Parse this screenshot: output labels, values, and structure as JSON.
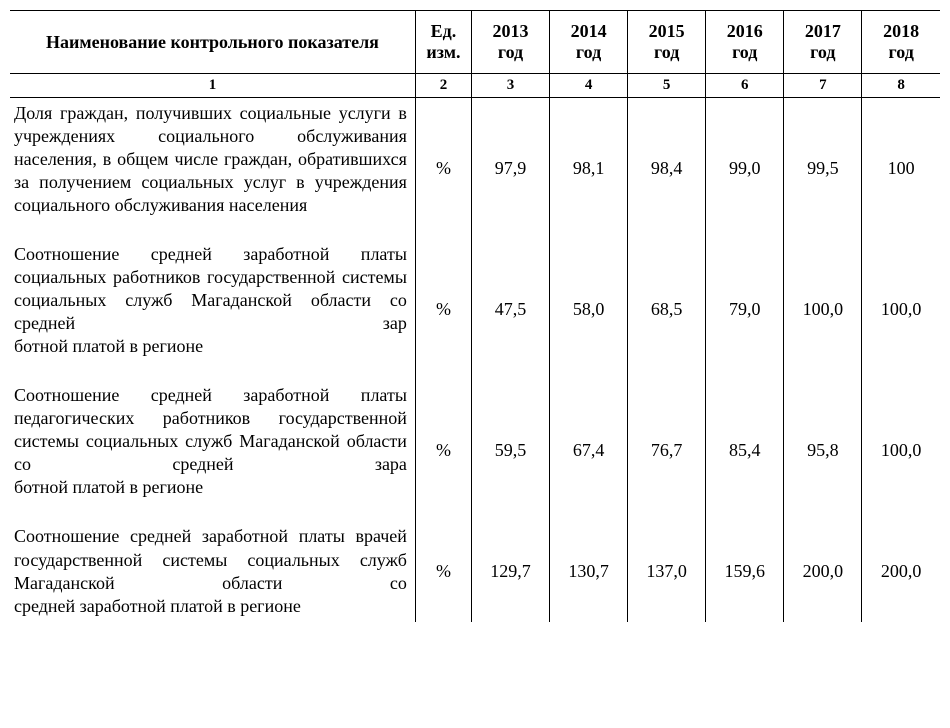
{
  "table": {
    "text_color": "#000000",
    "border_color": "#000000",
    "background_color": "#ffffff",
    "font_family": "Times New Roman",
    "header_fontsize": 18,
    "cell_fontsize": 18,
    "num_header_fontsize": 15,
    "header": {
      "name_col": "Наименование контрольного показателя",
      "unit_line1": "Ед.",
      "unit_line2": "изм.",
      "y2013_line1": "2013",
      "y2013_line2": "год",
      "y2014_line1": "2014",
      "y2014_line2": "год",
      "y2015_line1": "2015",
      "y2015_line2": "год",
      "y2016_line1": "2016",
      "y2016_line2": "год",
      "y2017_line1": "2017",
      "y2017_line2": "год",
      "y2018_line1": "2018",
      "y2018_line2": "год"
    },
    "numrow": {
      "c1": "1",
      "c2": "2",
      "c3": "3",
      "c4": "4",
      "c5": "5",
      "c6": "6",
      "c7": "7",
      "c8": "8"
    },
    "rows": [
      {
        "name_main": "Доля граждан, получивших социальные услуги в учреждениях социального обслуживания населения, в общем числе граждан, обратившихся за получением социальных услуг в учреждения",
        "name_last": "социального обслуживания населения",
        "unit": "%",
        "y2013": "97,9",
        "y2014": "98,1",
        "y2015": "98,4",
        "y2016": "99,0",
        "y2017": "99,5",
        "y2018": "100"
      },
      {
        "name_main": "Соотношение средней заработной платы социальных работников государствен­ной системы социальных служб Магаданской области со средней зар­",
        "name_last": "ботной платой в регионе",
        "unit": "%",
        "y2013": "47,5",
        "y2014": "58,0",
        "y2015": "68,5",
        "y2016": "79,0",
        "y2017": "100,0",
        "y2018": "100,0"
      },
      {
        "name_main": "Соотношение средней заработной платы педагогических работников государ­ственной системы социальных служб Магаданской области со средней зара­",
        "name_last": "ботной платой в регионе",
        "unit": "%",
        "y2013": "59,5",
        "y2014": "67,4",
        "y2015": "76,7",
        "y2016": "85,4",
        "y2017": "95,8",
        "y2018": "100,0"
      },
      {
        "name_main": "Соотношение средней заработной платы врачей государственной системы соци­альных служб Магаданской области со",
        "name_last": "средней заработной платой в регионе",
        "unit": "%",
        "y2013": "129,7",
        "y2014": "130,7",
        "y2015": "137,0",
        "y2016": "159,6",
        "y2017": "200,0",
        "y2018": "200,0"
      }
    ]
  }
}
